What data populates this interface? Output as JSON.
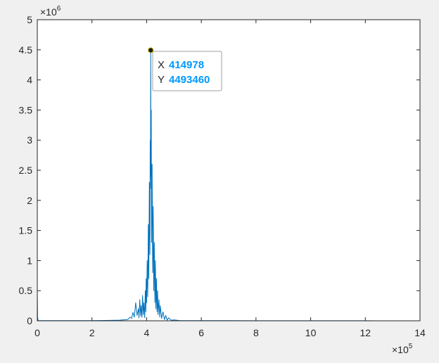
{
  "figure": {
    "background": "#f0f0f0",
    "axes_background": "#ffffff",
    "axis_color": "#262626",
    "line_color": "#0072bd",
    "datatip_value_color": "#0099ff"
  },
  "chart_data": {
    "type": "line",
    "title": "",
    "xlabel": "",
    "ylabel": "",
    "xlim": [
      0,
      1400000
    ],
    "ylim": [
      0,
      5000000
    ],
    "x_ticks": [
      0,
      200000,
      400000,
      600000,
      800000,
      1000000,
      1200000,
      1400000
    ],
    "x_tick_labels": [
      "0",
      "2",
      "4",
      "6",
      "8",
      "10",
      "12",
      "14"
    ],
    "y_ticks": [
      0,
      500000,
      1000000,
      1500000,
      2000000,
      2500000,
      3000000,
      3500000,
      4000000,
      4500000,
      5000000
    ],
    "y_tick_labels": [
      "0",
      "0.5",
      "1",
      "1.5",
      "2",
      "2.5",
      "3",
      "3.5",
      "4",
      "4.5",
      "5"
    ],
    "x_exponent": {
      "base": "×10",
      "power": "5"
    },
    "y_exponent": {
      "base": "×10",
      "power": "6"
    },
    "grid": false,
    "legend": "none",
    "series": [
      {
        "x": [
          0,
          1000,
          3000,
          20000,
          60000,
          100000,
          150000,
          200000,
          250000,
          300000,
          330000,
          340000,
          345000,
          350000,
          355000,
          360000,
          365000,
          370000,
          372000,
          375000,
          378000,
          380000,
          383000,
          385000,
          388000,
          390000,
          393000,
          395000,
          397000,
          398000,
          400000,
          402000,
          404000,
          406000,
          408000,
          410000,
          412000,
          413000,
          414000,
          414978,
          416000,
          417000,
          418000,
          420000,
          422000,
          424000,
          426000,
          428000,
          430000,
          432000,
          434000,
          436000,
          438000,
          440000,
          442000,
          445000,
          448000,
          450000,
          455000,
          460000,
          465000,
          470000,
          475000,
          480000,
          490000,
          500000,
          520000,
          550000,
          600000,
          700000,
          800000,
          900000,
          1000000,
          1100000,
          1200000,
          1250000
        ],
        "y": [
          500000,
          60000,
          5000,
          3000,
          2000,
          4000,
          3000,
          4000,
          6000,
          10000,
          20000,
          60000,
          40000,
          140000,
          60000,
          300000,
          90000,
          200000,
          50000,
          350000,
          80000,
          250000,
          60000,
          420000,
          100000,
          300000,
          50000,
          500000,
          150000,
          700000,
          300000,
          1000000,
          400000,
          1600000,
          700000,
          2300000,
          1100000,
          3000000,
          2200000,
          4493460,
          2400000,
          3500000,
          1300000,
          2600000,
          800000,
          1900000,
          500000,
          1300000,
          300000,
          1000000,
          200000,
          700000,
          150000,
          500000,
          100000,
          350000,
          60000,
          250000,
          40000,
          150000,
          20000,
          90000,
          10000,
          50000,
          8000,
          15000,
          5000,
          4000,
          3000,
          2000,
          1500,
          1000,
          1000,
          1000,
          800,
          500
        ]
      }
    ],
    "annotations": [
      {
        "kind": "datatip",
        "x": 414978,
        "y": 4493460,
        "x_label": "X",
        "y_label": "Y",
        "x_value": "414978",
        "y_value": "4493460"
      }
    ]
  }
}
